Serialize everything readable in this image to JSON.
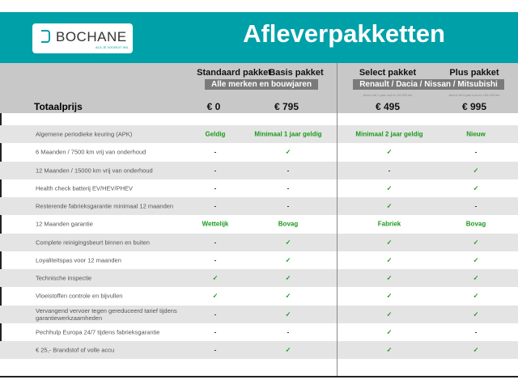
{
  "header": {
    "logo_text": "BOCHANE",
    "logo_tagline": "ALS JE VOORUIT WIL",
    "title": "Afleverpakketten"
  },
  "packages": [
    {
      "name": "Standaard pakket",
      "price": "€ 0"
    },
    {
      "name": "Basis pakket",
      "price": "€ 795"
    },
    {
      "name": "Select pakket",
      "price": "€ 495",
      "note": "Auto's tot 1 jaar oud en 20.000 km"
    },
    {
      "name": "Plus pakket",
      "price": "€ 995",
      "note": "Auto's tot 5 jaar oud en 100.000 km"
    }
  ],
  "bands": {
    "left": "Alle merken en bouwjaren",
    "right": "Renault / Dacia / Nissan / Mitsubishi"
  },
  "total_label": "Totaalprijs",
  "colors": {
    "teal": "#00a0a8",
    "check_green": "#1a9a1a"
  },
  "rows": [
    {
      "label": "Algemene periodieke keuring (APK)",
      "values": [
        "Geldig",
        "Minimaal 1 jaar geldig",
        "Minimaal 2 jaar geldig",
        "Nieuw"
      ]
    },
    {
      "label": "6 Maanden / 7500 km vrij van onderhoud",
      "values": [
        "-",
        "✓",
        "✓",
        "-"
      ]
    },
    {
      "label": "12 Maanden / 15000 km vrij van onderhoud",
      "values": [
        "-",
        "-",
        "-",
        "✓"
      ]
    },
    {
      "label": "Health check batterij EV/HEV/PHEV",
      "values": [
        "-",
        "-",
        "✓",
        "✓"
      ]
    },
    {
      "label": "Resterende fabrieksgarantie minimaal 12 maanden",
      "values": [
        "-",
        "-",
        "✓",
        "-"
      ]
    },
    {
      "label": "12 Maanden  garantie",
      "values": [
        "Wettelijk",
        "Bovag",
        "Fabriek",
        "Bovag"
      ]
    },
    {
      "label": "Complete reinigingsbeurt binnen en buiten",
      "values": [
        "-",
        "✓",
        "✓",
        "✓"
      ]
    },
    {
      "label": "Loyaliteitspas voor 12 maanden",
      "values": [
        "-",
        "✓",
        "✓",
        "✓"
      ]
    },
    {
      "label": "Technische inspectie",
      "values": [
        "✓",
        "✓",
        "✓",
        "✓"
      ]
    },
    {
      "label": "Vloeistoffen controle en bijvullen",
      "values": [
        "✓",
        "✓",
        "✓",
        "✓"
      ]
    },
    {
      "label": "Vervangend vervoer tegen gereduceerd tarief tijdens garantiewerkzaamheden",
      "values": [
        "-",
        "✓",
        "✓",
        "✓"
      ]
    },
    {
      "label": "Pechhulp Europa 24/7 tijdens fabrieksgarantie",
      "values": [
        "-",
        "-",
        "✓",
        "-"
      ]
    },
    {
      "label": "€ 25,- Brandstof of  volle accu",
      "values": [
        "-",
        "✓",
        "✓",
        "✓"
      ]
    }
  ]
}
